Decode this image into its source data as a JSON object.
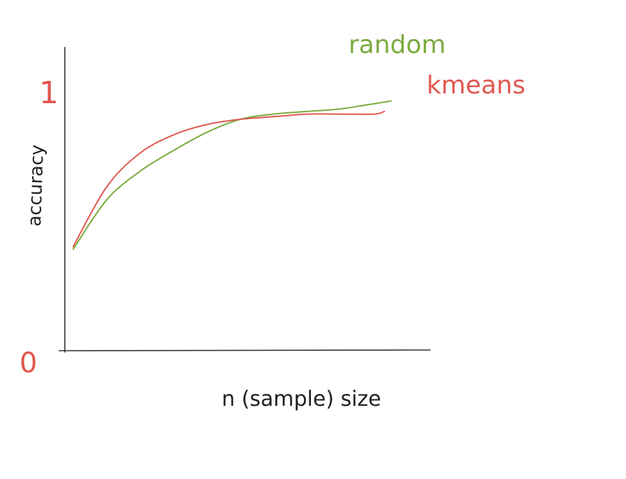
{
  "colors": {
    "axis": "#333333",
    "random": "#7aab3e",
    "kmeans": "#e0584f",
    "ink": "#222222"
  },
  "chart_data": {
    "type": "line",
    "xlabel": "n (sample) size",
    "ylabel": "accuracy",
    "ylim": [
      0,
      1
    ],
    "y_ticks": [
      "0",
      "1"
    ],
    "series": [
      {
        "name": "random",
        "x": [
          0,
          0.1,
          0.2,
          0.3,
          0.4,
          0.5,
          0.6,
          0.7,
          0.8,
          0.9,
          0.95
        ],
        "values": [
          0.39,
          0.58,
          0.69,
          0.77,
          0.84,
          0.89,
          0.91,
          0.92,
          0.93,
          0.95,
          0.96
        ]
      },
      {
        "name": "kmeans",
        "x": [
          0,
          0.1,
          0.2,
          0.3,
          0.4,
          0.5,
          0.6,
          0.7,
          0.8,
          0.9,
          0.93
        ],
        "values": [
          0.4,
          0.63,
          0.76,
          0.83,
          0.87,
          0.89,
          0.9,
          0.91,
          0.91,
          0.91,
          0.92
        ]
      }
    ]
  }
}
